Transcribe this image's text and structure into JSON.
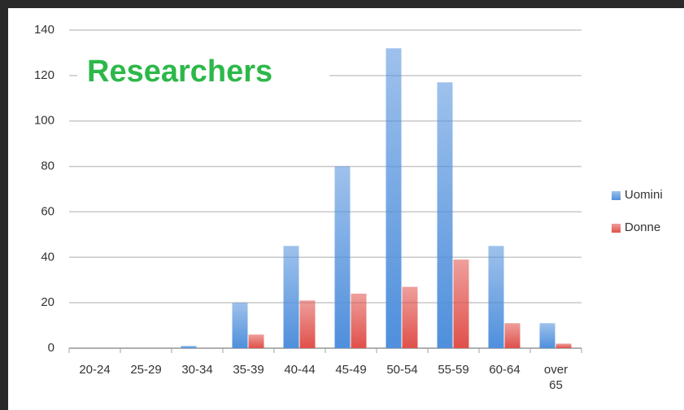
{
  "chart_data": {
    "type": "bar",
    "title": "Researchers",
    "categories": [
      "20-24",
      "25-29",
      "30-34",
      "35-39",
      "40-44",
      "45-49",
      "50-54",
      "55-59",
      "60-64",
      "over 65"
    ],
    "series": [
      {
        "name": "Uomini",
        "color": "#4f8fdc",
        "values": [
          0,
          0,
          1,
          20,
          45,
          80,
          132,
          117,
          45,
          11
        ]
      },
      {
        "name": "Donne",
        "color": "#e0504a",
        "values": [
          0,
          0,
          0,
          6,
          21,
          24,
          27,
          39,
          11,
          2
        ]
      }
    ],
    "ylim": [
      0,
      140
    ],
    "yticks": [
      0,
      20,
      40,
      60,
      80,
      100,
      120,
      140
    ],
    "grid": true,
    "legend": "right"
  }
}
